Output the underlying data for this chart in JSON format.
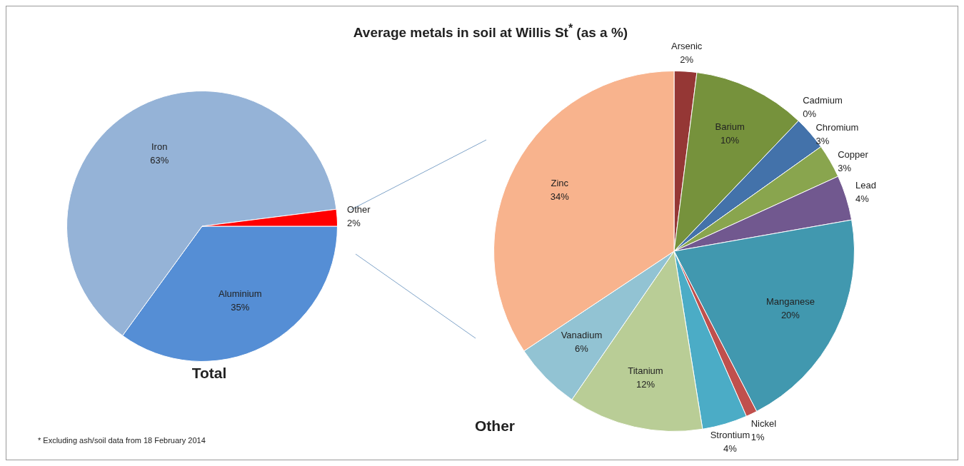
{
  "chart_data": [
    {
      "type": "other",
      "title": "Average metals in soil at Willis St$^{*}$ (as a %)",
      "annotations": [
        "* Excluding ash/soil data from 18 February 2014"
      ]
    },
    {
      "type": "pie",
      "title": "Total",
      "categories": [
        "Aluminium",
        "Iron",
        "Other"
      ],
      "values": [
        35,
        63,
        2
      ],
      "colors": [
        "#558ed5",
        "#95b3d7",
        "#ff0000"
      ],
      "value_labels": [
        "35%",
        "63%",
        "2%"
      ]
    },
    {
      "type": "pie",
      "title": "Other",
      "categories": [
        "Arsenic",
        "Barium",
        "Cadmium",
        "Chromium",
        "Copper",
        "Lead",
        "Manganese",
        "Nickel",
        "Strontium",
        "Titanium",
        "Vanadium",
        "Zinc"
      ],
      "values": [
        2,
        10,
        0,
        3,
        3,
        4,
        20,
        1,
        4,
        12,
        6,
        34
      ],
      "colors": [
        "#953735",
        "#76923c",
        "#c0504d",
        "#4372aa",
        "#89a54e",
        "#71588f",
        "#4198af",
        "#c0504d",
        "#4bacc6",
        "#b9cd96",
        "#92c3d3",
        "#f8b38d"
      ],
      "value_labels": [
        "2%",
        "10%",
        "0%",
        "3%",
        "3%",
        "4%",
        "20%",
        "1%",
        "4%",
        "12%",
        "6%",
        "34%"
      ]
    }
  ]
}
